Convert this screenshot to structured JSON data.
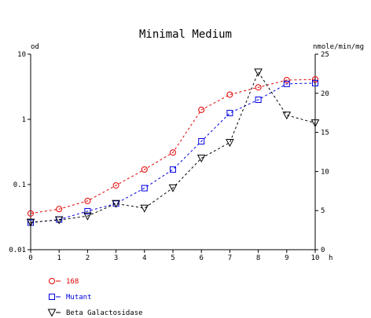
{
  "chart_data": {
    "type": "line",
    "title": "Minimal Medium",
    "x": [
      0,
      1,
      2,
      3,
      4,
      5,
      6,
      7,
      8,
      9,
      10
    ],
    "xlim": [
      0,
      10
    ],
    "x_unit": "h",
    "x_ticks": [
      "0",
      "1",
      "2",
      "3",
      "4",
      "5",
      "6",
      "7",
      "8",
      "9",
      "10"
    ],
    "left_axis": {
      "label": "od",
      "scale": "log",
      "ylim": [
        0.01,
        10
      ],
      "ticks": [
        "0.01",
        "0.1",
        "1",
        "10"
      ]
    },
    "right_axis": {
      "label": "nmole/min/mg",
      "scale": "linear",
      "ylim": [
        0,
        25
      ],
      "ticks": [
        "0",
        "5",
        "10",
        "15",
        "20",
        "25"
      ]
    },
    "grid": false,
    "legend_position": "bottom-left",
    "series": [
      {
        "name": "168",
        "axis": "left",
        "marker": "circle",
        "color": "#e00000",
        "line": "dashed",
        "values": [
          0.036,
          0.042,
          0.056,
          0.097,
          0.17,
          0.31,
          1.4,
          2.4,
          3.1,
          4.0,
          4.1
        ]
      },
      {
        "name": "Mutant",
        "axis": "left",
        "marker": "square",
        "color": "#0000e0",
        "line": "dashed",
        "values": [
          0.026,
          0.029,
          0.039,
          0.051,
          0.088,
          0.17,
          0.46,
          1.25,
          2.0,
          3.5,
          3.6
        ]
      },
      {
        "name": "Beta Galactosidase",
        "axis": "right",
        "marker": "triangle-down",
        "color": "#000000",
        "line": "dashed",
        "values": [
          3.5,
          3.8,
          4.3,
          5.9,
          5.3,
          7.9,
          11.7,
          13.7,
          22.7,
          17.2,
          16.2
        ]
      }
    ]
  }
}
